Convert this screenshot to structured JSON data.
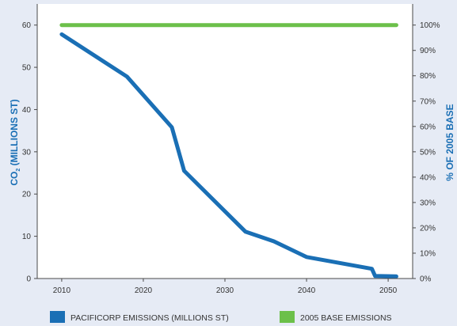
{
  "chart_data": {
    "type": "line",
    "title": "",
    "x": [
      2010,
      2018,
      2023.5,
      2025,
      2032.5,
      2036,
      2040,
      2048,
      2048.4,
      2051
    ],
    "xlim": [
      2007,
      2053
    ],
    "xticks": [
      2010,
      2020,
      2030,
      2040,
      2050
    ],
    "ylim": [
      0,
      65
    ],
    "yticks": [
      0,
      10,
      20,
      30,
      40,
      50,
      60
    ],
    "y2lim": [
      0,
      108.33
    ],
    "y2ticks": [
      "0%",
      "10%",
      "20%",
      "30%",
      "40%",
      "50%",
      "60%",
      "70%",
      "80%",
      "90%",
      "100%"
    ],
    "ylabel_prefix": "CO",
    "ylabel_sub": "2",
    "ylabel_suffix": " (MILLIONS ST)",
    "y2label": "% OF 2005 BASE",
    "grid": false,
    "legend_position": "bottom",
    "series": [
      {
        "name": "PACIFICORP EMISSIONS (MILLIONS ST)",
        "color": "#1a6fb5",
        "values": [
          57.8,
          47.8,
          35.8,
          25.5,
          11.1,
          8.8,
          5.1,
          2.3,
          0.6,
          0.5
        ]
      },
      {
        "name": "2005 BASE EMISSIONS",
        "color": "#6cc04a",
        "x": [
          2010,
          2051
        ],
        "values": [
          60,
          60
        ]
      }
    ],
    "colors": {
      "axis": "#1a6fb5",
      "axis_line": "#4a4a4a",
      "plot_bg": "#ffffff",
      "page_bg": "#e6ebf5",
      "y2_title": "#1a6fb5"
    }
  }
}
